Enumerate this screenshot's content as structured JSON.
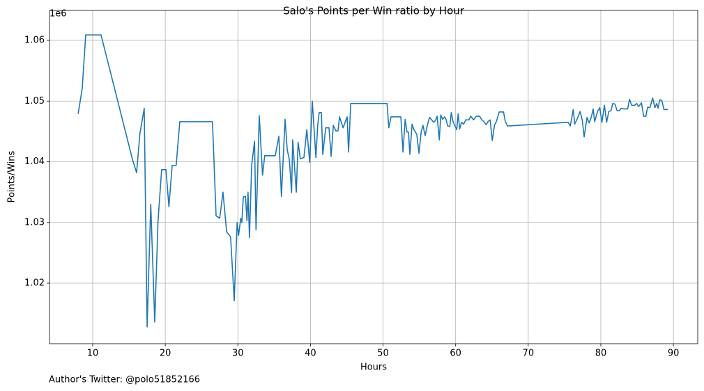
{
  "chart_data": {
    "type": "line",
    "title": "Salo's Points per Win ratio by Hour",
    "x_label": "Hours",
    "y_label": "Points/Wins",
    "y_offset_label": "1e6",
    "footnote": "Author's Twitter: @polo51852166",
    "color": "#1f77b4",
    "grid": true,
    "xlim": [
      4.05,
      93.35
    ],
    "xticks": [
      10,
      20,
      30,
      40,
      50,
      60,
      70,
      80,
      90
    ],
    "ylim": [
      1010030,
      1064930
    ],
    "yticks": [
      {
        "value": 1020000,
        "label": "1.02"
      },
      {
        "value": 1030000,
        "label": "1.03"
      },
      {
        "value": 1040000,
        "label": "1.04"
      },
      {
        "value": 1050000,
        "label": "1.05"
      },
      {
        "value": 1060000,
        "label": "1.06"
      }
    ],
    "x": [
      8.0,
      8.56,
      9.04,
      11.15,
      15.5,
      16.05,
      16.5,
      17.1,
      17.5,
      18.0,
      18.55,
      19.0,
      19.5,
      20.1,
      20.5,
      20.95,
      21.5,
      22.0,
      26.5,
      27.0,
      27.5,
      27.95,
      28.45,
      29.0,
      29.5,
      29.9,
      30.1,
      30.4,
      30.55,
      30.75,
      31.05,
      31.25,
      31.4,
      31.6,
      31.9,
      32.3,
      32.5,
      32.95,
      33.4,
      33.7,
      35.15,
      35.65,
      36.0,
      36.5,
      36.8,
      37.1,
      37.4,
      37.55,
      38.05,
      38.3,
      38.6,
      39.1,
      39.5,
      39.9,
      40.25,
      40.75,
      41.0,
      41.2,
      41.5,
      41.7,
      42.1,
      42.55,
      42.85,
      43.15,
      43.5,
      43.8,
      44.0,
      44.5,
      45.05,
      45.25,
      45.55,
      50.55,
      50.8,
      51.1,
      52.45,
      52.75,
      53.05,
      53.3,
      53.5,
      53.7,
      54.0,
      54.25,
      54.65,
      54.95,
      55.25,
      55.5,
      55.8,
      56.1,
      56.4,
      56.7,
      57.0,
      57.25,
      57.45,
      57.75,
      57.95,
      58.2,
      58.5,
      58.7,
      58.9,
      59.2,
      59.4,
      59.65,
      59.95,
      60.15,
      60.35,
      60.55,
      60.8,
      61.1,
      61.4,
      61.8,
      62.1,
      62.45,
      62.85,
      63.3,
      63.6,
      63.9,
      64.2,
      64.45,
      64.75,
      65.05,
      65.35,
      65.6,
      66.0,
      66.6,
      66.85,
      67.15,
      75.5,
      75.8,
      76.2,
      76.4,
      76.8,
      77.15,
      77.45,
      77.7,
      78.1,
      78.4,
      78.7,
      78.95,
      79.15,
      79.55,
      79.85,
      80.15,
      80.5,
      80.8,
      81.1,
      81.4,
      81.65,
      81.95,
      82.25,
      82.55,
      82.8,
      83.1,
      83.4,
      83.7,
      83.95,
      84.25,
      84.65,
      84.95,
      85.2,
      85.6,
      85.9,
      86.2,
      86.45,
      86.75,
      87.15,
      87.45,
      87.7,
      87.9,
      88.1,
      88.4,
      88.7,
      89.25
    ],
    "values": [
      1047900,
      1052100,
      1060900,
      1060900,
      1040300,
      1038200,
      1044600,
      1048800,
      1012800,
      1033000,
      1013600,
      1030200,
      1038700,
      1038700,
      1032600,
      1039400,
      1039400,
      1046600,
      1046600,
      1031100,
      1030700,
      1035000,
      1028500,
      1027600,
      1017100,
      1030000,
      1027900,
      1030700,
      1030000,
      1034200,
      1034300,
      1030300,
      1035000,
      1027500,
      1039400,
      1043400,
      1028800,
      1047600,
      1037800,
      1041000,
      1041000,
      1044200,
      1034300,
      1047000,
      1042000,
      1040300,
      1034900,
      1043600,
      1035000,
      1043200,
      1040500,
      1040700,
      1045300,
      1039900,
      1050000,
      1040700,
      1046000,
      1048100,
      1048100,
      1041200,
      1045600,
      1045600,
      1040900,
      1046000,
      1045100,
      1045100,
      1047400,
      1045600,
      1047400,
      1041600,
      1049600,
      1049600,
      1045600,
      1047400,
      1047400,
      1041600,
      1047000,
      1044900,
      1044900,
      1041200,
      1046200,
      1045300,
      1044500,
      1041400,
      1044900,
      1046000,
      1044300,
      1046000,
      1047300,
      1046900,
      1046500,
      1046900,
      1047500,
      1043600,
      1047700,
      1047000,
      1047400,
      1046900,
      1045900,
      1045800,
      1048100,
      1046600,
      1045800,
      1045300,
      1047900,
      1045400,
      1046500,
      1046200,
      1046900,
      1046900,
      1047500,
      1046900,
      1047500,
      1047500,
      1046900,
      1046600,
      1046100,
      1046600,
      1046900,
      1043500,
      1046000,
      1046600,
      1048200,
      1048200,
      1046600,
      1045900,
      1046500,
      1045900,
      1048600,
      1046200,
      1047200,
      1048300,
      1046800,
      1044100,
      1047300,
      1046400,
      1047400,
      1048700,
      1046600,
      1048300,
      1048900,
      1046500,
      1049300,
      1046500,
      1048300,
      1048400,
      1049600,
      1049500,
      1048400,
      1048400,
      1048800,
      1048700,
      1048700,
      1048700,
      1050300,
      1049300,
      1049300,
      1049600,
      1049100,
      1049700,
      1047500,
      1047500,
      1049000,
      1048900,
      1050500,
      1048900,
      1049600,
      1048800,
      1050200,
      1050100,
      1048600,
      1048600
    ]
  }
}
